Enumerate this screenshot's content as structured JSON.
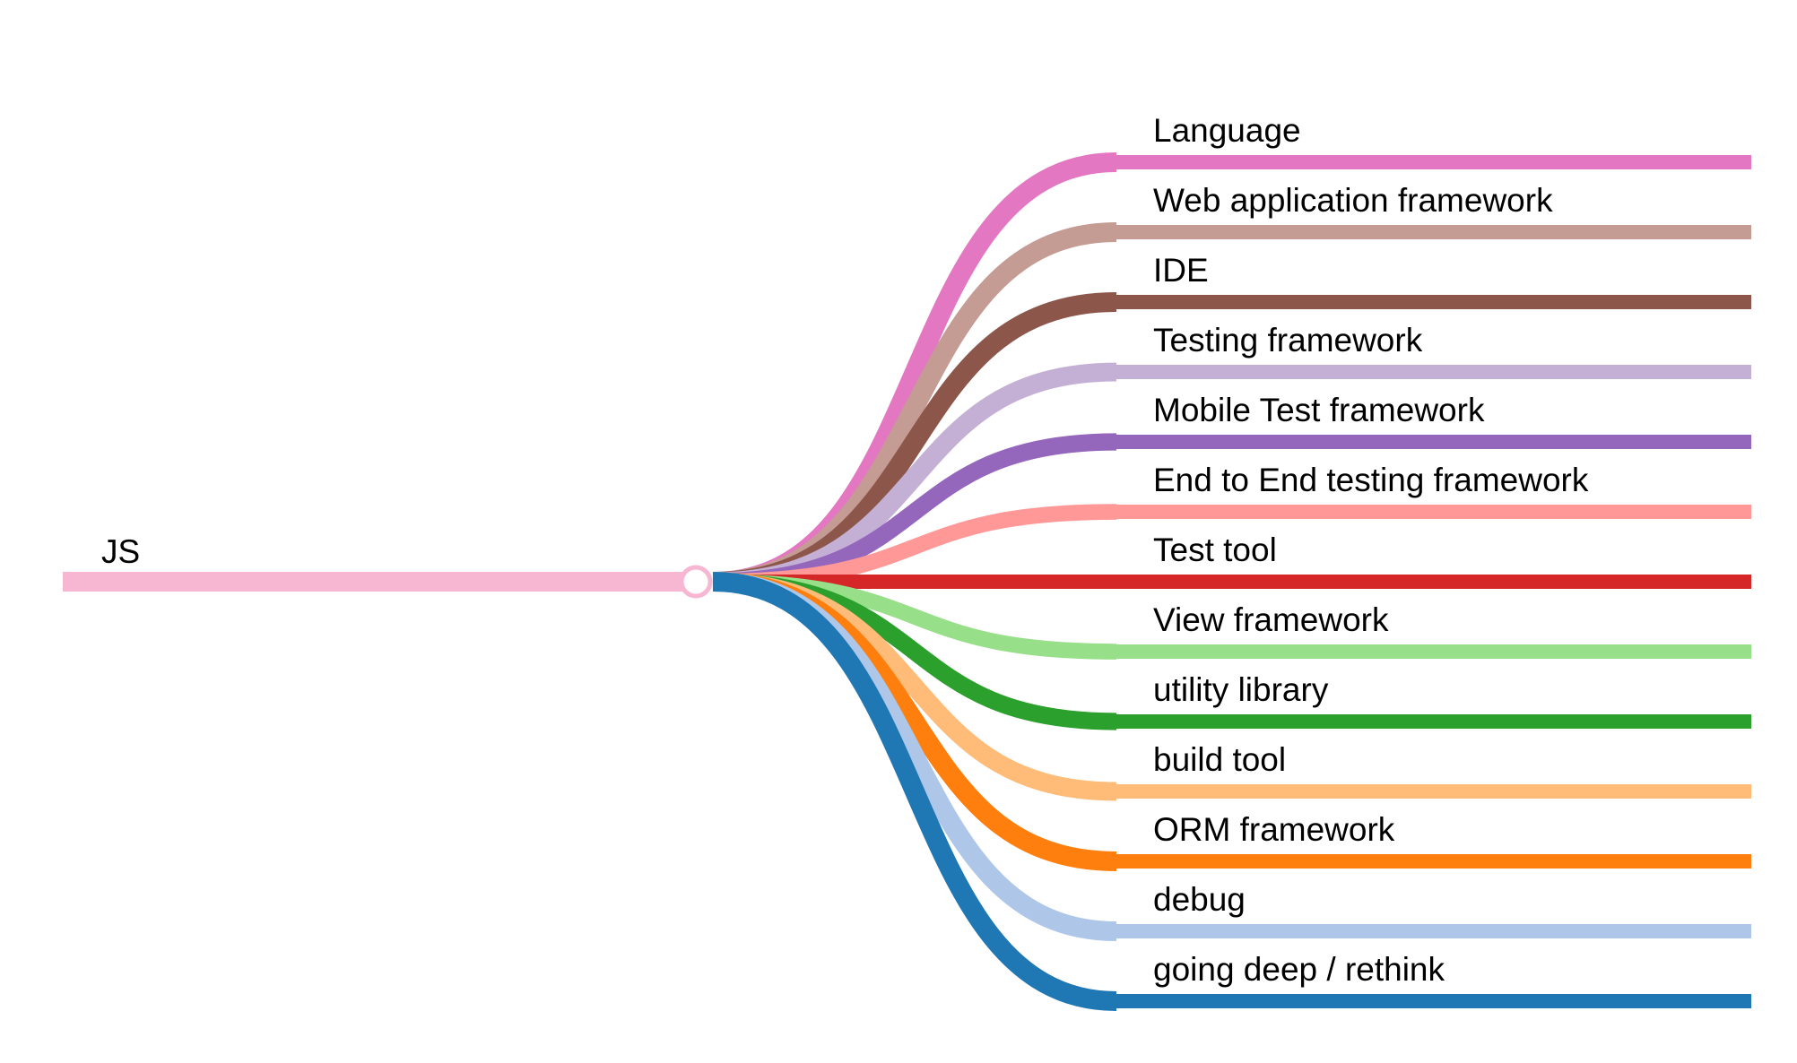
{
  "root": {
    "label": "JS",
    "color": "#f7b6d2"
  },
  "branches": [
    {
      "label": "Language",
      "color": "#e377c2"
    },
    {
      "label": "Web application framework",
      "color": "#c49c94"
    },
    {
      "label": "IDE",
      "color": "#8c564b"
    },
    {
      "label": "Testing framework",
      "color": "#c5b0d5"
    },
    {
      "label": "Mobile Test framework",
      "color": "#9467bd"
    },
    {
      "label": "End to End testing framework",
      "color": "#ff9896"
    },
    {
      "label": "Test tool",
      "color": "#d62728"
    },
    {
      "label": "View framework",
      "color": "#98df8a"
    },
    {
      "label": "utility library",
      "color": "#2ca02c"
    },
    {
      "label": "build tool",
      "color": "#ffbb78"
    },
    {
      "label": "ORM framework",
      "color": "#ff7f0e"
    },
    {
      "label": "debug",
      "color": "#aec7e8"
    },
    {
      "label": "going deep / rethink",
      "color": "#1f77b4"
    }
  ]
}
